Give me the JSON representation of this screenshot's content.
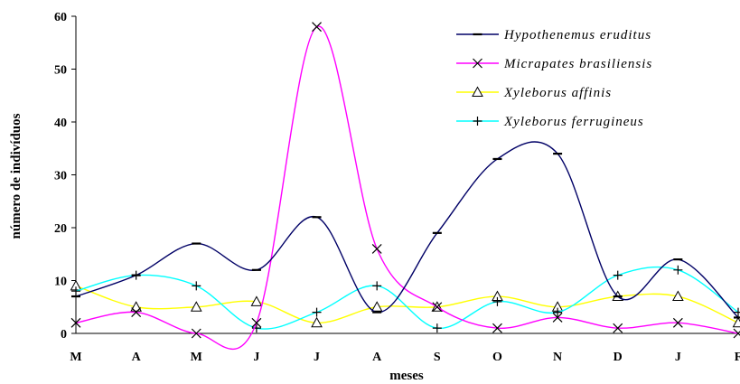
{
  "chart_data": {
    "type": "line",
    "title": "",
    "xlabel": "meses",
    "ylabel": "número de indivíduos",
    "categories": [
      "M",
      "A",
      "M",
      "J",
      "J",
      "A",
      "S",
      "O",
      "N",
      "D",
      "J",
      "F"
    ],
    "ylim": [
      0,
      60
    ],
    "yticks": [
      0,
      10,
      20,
      30,
      40,
      50,
      60
    ],
    "grid": false,
    "legend_position": "top-right",
    "series": [
      {
        "name": "Hypothenemus eruditus",
        "color": "#000066",
        "marker": "dash",
        "values": [
          7,
          11,
          17,
          12,
          22,
          4,
          19,
          33,
          34,
          7,
          14,
          3
        ]
      },
      {
        "name": "Micrapates brasiliensis",
        "color": "#ff00ff",
        "marker": "x",
        "values": [
          2,
          4,
          0,
          2,
          58,
          16,
          5,
          1,
          3,
          1,
          2,
          0
        ]
      },
      {
        "name": "Xyleborus affinis",
        "color": "#ffff00",
        "marker": "triangle",
        "values": [
          9,
          5,
          5,
          6,
          2,
          5,
          5,
          7,
          5,
          7,
          7,
          2
        ]
      },
      {
        "name": "Xyleborus ferrugineus",
        "color": "#00ffff",
        "marker": "plus",
        "values": [
          8,
          11,
          9,
          1,
          4,
          9,
          1,
          6,
          4,
          11,
          12,
          4
        ]
      }
    ]
  }
}
